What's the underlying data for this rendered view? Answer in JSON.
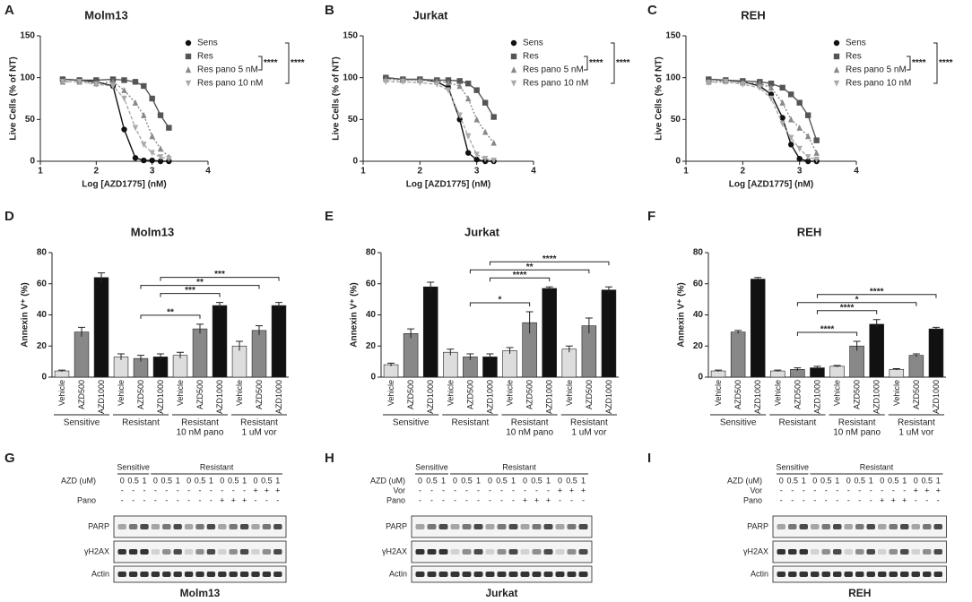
{
  "panel_labels": [
    "A",
    "B",
    "C",
    "D",
    "E",
    "F",
    "G",
    "H",
    "I"
  ],
  "chart_data": [
    {
      "type": "line",
      "title": "Molm13",
      "x_label": "Log [AZD1775] (nM)",
      "y_label": "Live Cells (% of NT)",
      "x": [
        1.4,
        1.7,
        2.0,
        2.3,
        2.5,
        2.7,
        2.85,
        3.0,
        3.15,
        3.3
      ],
      "xlim": [
        1,
        4
      ],
      "xticks": [
        1,
        2,
        3,
        4
      ],
      "ylim": [
        0,
        150
      ],
      "yticks": [
        0,
        50,
        100,
        150
      ],
      "series": [
        {
          "name": "Sens",
          "color": "#111111",
          "marker": "circle",
          "dash": false,
          "values": [
            98,
            97,
            95,
            90,
            38,
            4,
            1,
            1,
            0,
            0
          ]
        },
        {
          "name": "Res",
          "color": "#555555",
          "marker": "square",
          "dash": false,
          "values": [
            98,
            97,
            97,
            98,
            97,
            95,
            90,
            75,
            55,
            40
          ]
        },
        {
          "name": "Res pano 5 nM",
          "color": "#888888",
          "marker": "triangle-up",
          "dash": true,
          "values": [
            95,
            95,
            93,
            95,
            85,
            70,
            55,
            30,
            15,
            5
          ]
        },
        {
          "name": "Res pano 10 nM",
          "color": "#aaaaaa",
          "marker": "triangle-down",
          "dash": true,
          "values": [
            95,
            95,
            92,
            90,
            75,
            40,
            20,
            10,
            5,
            3
          ]
        }
      ],
      "brackets": [
        {
          "label": "****",
          "between": [
            1,
            2
          ]
        },
        {
          "label": "****",
          "between": [
            0,
            3
          ]
        }
      ]
    },
    {
      "type": "line",
      "title": "Jurkat",
      "x_label": "Log [AZD1775] (nM)",
      "y_label": "Live Cells (% of NT)",
      "x": [
        1.4,
        1.7,
        2.0,
        2.3,
        2.5,
        2.7,
        2.85,
        3.0,
        3.15,
        3.3
      ],
      "xlim": [
        1,
        4
      ],
      "xticks": [
        1,
        2,
        3,
        4
      ],
      "ylim": [
        0,
        150
      ],
      "yticks": [
        0,
        50,
        100,
        150
      ],
      "series": [
        {
          "name": "Sens",
          "color": "#111111",
          "marker": "circle",
          "dash": false,
          "values": [
            100,
            98,
            98,
            95,
            88,
            50,
            10,
            2,
            0,
            0
          ]
        },
        {
          "name": "Res",
          "color": "#555555",
          "marker": "square",
          "dash": false,
          "values": [
            100,
            98,
            98,
            97,
            97,
            96,
            93,
            85,
            70,
            53
          ]
        },
        {
          "name": "Res pano 5 nM",
          "color": "#888888",
          "marker": "triangle-up",
          "dash": true,
          "values": [
            98,
            97,
            97,
            96,
            94,
            90,
            75,
            50,
            35,
            22
          ]
        },
        {
          "name": "Res pano 10 nM",
          "color": "#aaaaaa",
          "marker": "triangle-down",
          "dash": true,
          "values": [
            95,
            95,
            94,
            92,
            85,
            55,
            30,
            8,
            3,
            1
          ]
        }
      ],
      "brackets": [
        {
          "label": "****",
          "between": [
            1,
            2
          ]
        },
        {
          "label": "****",
          "between": [
            0,
            3
          ]
        }
      ]
    },
    {
      "type": "line",
      "title": "REH",
      "x_label": "Log [AZD1775] (nM)",
      "y_label": "Live Cells (% of NT)",
      "x": [
        1.4,
        1.7,
        2.0,
        2.3,
        2.5,
        2.7,
        2.85,
        3.0,
        3.15,
        3.3
      ],
      "xlim": [
        1,
        4
      ],
      "xticks": [
        1,
        2,
        3,
        4
      ],
      "ylim": [
        0,
        150
      ],
      "yticks": [
        0,
        50,
        100,
        150
      ],
      "series": [
        {
          "name": "Sens",
          "color": "#111111",
          "marker": "circle",
          "dash": false,
          "values": [
            98,
            97,
            95,
            90,
            80,
            52,
            20,
            3,
            0,
            0
          ]
        },
        {
          "name": "Res",
          "color": "#555555",
          "marker": "square",
          "dash": false,
          "values": [
            98,
            97,
            96,
            95,
            93,
            88,
            80,
            70,
            55,
            25
          ]
        },
        {
          "name": "Res pano 5 nM",
          "color": "#888888",
          "marker": "triangle-up",
          "dash": true,
          "values": [
            95,
            96,
            94,
            93,
            88,
            70,
            50,
            40,
            30,
            10
          ]
        },
        {
          "name": "Res pano 10 nM",
          "color": "#aaaaaa",
          "marker": "triangle-down",
          "dash": true,
          "values": [
            94,
            95,
            92,
            88,
            75,
            45,
            28,
            15,
            5,
            2
          ]
        }
      ],
      "brackets": [
        {
          "label": "****",
          "between": [
            1,
            2
          ]
        },
        {
          "label": "****",
          "between": [
            0,
            3
          ]
        }
      ]
    },
    {
      "type": "bar",
      "title": "Molm13",
      "y_label": "Annexin V⁺ (%)",
      "categories": [
        "Vehicle",
        "AZD500",
        "AZD1000",
        "Vehicle",
        "AZD500",
        "AZD1000",
        "Vehicle",
        "AZD500",
        "AZD1000",
        "Vehicle",
        "AZD500",
        "AZD1000"
      ],
      "values": [
        4,
        29,
        64,
        13,
        12,
        13,
        14,
        31,
        46,
        20,
        30,
        46
      ],
      "errors": [
        0.5,
        3,
        3,
        2,
        2,
        2,
        2,
        3,
        2,
        3,
        3,
        2
      ],
      "bar_colors": [
        "#dddddd",
        "#888888",
        "#111111"
      ],
      "groups": [
        [
          "Sensitive"
        ],
        [
          "Resistant"
        ],
        [
          "Resistant",
          "10 nM pano"
        ],
        [
          "Resistant",
          "1 uM vor"
        ]
      ],
      "ylim": [
        0,
        80
      ],
      "yticks": [
        0,
        20,
        40,
        60,
        80
      ],
      "brackets": [
        {
          "label": "**",
          "between": [
            4,
            7
          ]
        },
        {
          "label": "***",
          "between": [
            5,
            8
          ]
        },
        {
          "label": "**",
          "between": [
            4,
            10
          ]
        },
        {
          "label": "***",
          "between": [
            5,
            11
          ]
        }
      ]
    },
    {
      "type": "bar",
      "title": "Jurkat",
      "y_label": "Annexin V⁺ (%)",
      "categories": [
        "Vehicle",
        "AZD500",
        "AZD1000",
        "Vehicle",
        "AZD500",
        "AZD1000",
        "Vehicle",
        "AZD500",
        "AZD1000",
        "Vehicle",
        "AZD500",
        "AZD1000"
      ],
      "values": [
        8,
        28,
        58,
        16,
        13,
        13,
        17,
        35,
        57,
        18,
        33,
        56
      ],
      "errors": [
        1,
        3,
        3,
        2,
        2,
        2,
        2,
        7,
        1,
        2,
        5,
        2
      ],
      "bar_colors": [
        "#dddddd",
        "#888888",
        "#111111"
      ],
      "groups": [
        [
          "Sensitive"
        ],
        [
          "Resistant"
        ],
        [
          "Resistant",
          "10 nM pano"
        ],
        [
          "Resistant",
          "1 uM vor"
        ]
      ],
      "ylim": [
        0,
        80
      ],
      "yticks": [
        0,
        20,
        40,
        60,
        80
      ],
      "brackets": [
        {
          "label": "*",
          "between": [
            4,
            7
          ]
        },
        {
          "label": "****",
          "between": [
            5,
            8
          ]
        },
        {
          "label": "**",
          "between": [
            4,
            10
          ]
        },
        {
          "label": "****",
          "between": [
            5,
            11
          ]
        }
      ]
    },
    {
      "type": "bar",
      "title": "REH",
      "y_label": "Annexin V⁺ (%)",
      "categories": [
        "Vehicle",
        "AZD500",
        "AZD1000",
        "Vehicle",
        "AZD500",
        "AZD1000",
        "Vehicle",
        "AZD500",
        "AZD1000",
        "Vehicle",
        "AZD500",
        "AZD1000"
      ],
      "values": [
        4,
        29,
        63,
        4,
        5,
        6,
        7,
        20,
        34,
        5,
        14,
        31
      ],
      "errors": [
        0.5,
        1,
        1,
        0.5,
        1,
        1,
        0.5,
        3,
        3,
        0.5,
        1,
        1
      ],
      "bar_colors": [
        "#dddddd",
        "#888888",
        "#111111"
      ],
      "groups": [
        [
          "Sensitive"
        ],
        [
          "Resistant"
        ],
        [
          "Resistant",
          "10 nM pano"
        ],
        [
          "Resistant",
          "1 uM vor"
        ]
      ],
      "ylim": [
        0,
        80
      ],
      "yticks": [
        0,
        20,
        40,
        60,
        80
      ],
      "brackets": [
        {
          "label": "****",
          "between": [
            4,
            7
          ]
        },
        {
          "label": "****",
          "between": [
            5,
            8
          ]
        },
        {
          "label": "*",
          "between": [
            4,
            10
          ]
        },
        {
          "label": "****",
          "between": [
            5,
            11
          ]
        }
      ]
    }
  ],
  "blots": [
    {
      "title": "Molm13",
      "groups": [
        {
          "name": "Sensitive",
          "lanes": 3
        },
        {
          "name": "Resistant",
          "lanes": 12
        }
      ],
      "rows": [
        {
          "label": "AZD (uM)",
          "values": [
            "0",
            "0.5",
            "1",
            "0",
            "0.5",
            "1",
            "0",
            "0.5",
            "1",
            "0",
            "0.5",
            "1",
            "0",
            "0.5",
            "1"
          ]
        },
        {
          "label": null,
          "values": [
            "-",
            "-",
            "-",
            "-",
            "-",
            "-",
            "-",
            "-",
            "-",
            "-",
            "-",
            "-",
            "+",
            "+",
            "+"
          ]
        },
        {
          "label": "Pano",
          "values": [
            "-",
            "-",
            "-",
            "-",
            "-",
            "-",
            "-",
            "-",
            "-",
            "+",
            "+",
            "+",
            "-",
            "-",
            "-"
          ]
        }
      ],
      "bands": [
        "PARP",
        "γH2AX",
        "Actin"
      ]
    },
    {
      "title": "Jurkat",
      "groups": [
        {
          "name": "Sensitive",
          "lanes": 3
        },
        {
          "name": "Resistant",
          "lanes": 12
        }
      ],
      "rows": [
        {
          "label": "AZD (uM)",
          "values": [
            "0",
            "0.5",
            "1",
            "0",
            "0.5",
            "1",
            "0",
            "0.5",
            "1",
            "0",
            "0.5",
            "1",
            "0",
            "0.5",
            "1"
          ]
        },
        {
          "label": "Vor",
          "values": [
            "-",
            "-",
            "-",
            "-",
            "-",
            "-",
            "-",
            "-",
            "-",
            "-",
            "-",
            "-",
            "+",
            "+",
            "+"
          ]
        },
        {
          "label": "Pano",
          "values": [
            "-",
            "-",
            "-",
            "-",
            "-",
            "-",
            "-",
            "-",
            "-",
            "+",
            "+",
            "+",
            "-",
            "-",
            "-"
          ]
        }
      ],
      "bands": [
        "PARP",
        "γH2AX",
        "Actin"
      ]
    },
    {
      "title": "REH",
      "groups": [
        {
          "name": "Sensitive",
          "lanes": 3
        },
        {
          "name": "Resistant",
          "lanes": 12
        }
      ],
      "rows": [
        {
          "label": "AZD (uM)",
          "values": [
            "0",
            "0.5",
            "1",
            "0",
            "0.5",
            "1",
            "0",
            "0.5",
            "1",
            "0",
            "0.5",
            "1",
            "0",
            "0.5",
            "1"
          ]
        },
        {
          "label": "Vor",
          "values": [
            "-",
            "-",
            "-",
            "-",
            "-",
            "-",
            "-",
            "-",
            "-",
            "-",
            "-",
            "-",
            "+",
            "+",
            "+"
          ]
        },
        {
          "label": "Pano",
          "values": [
            "-",
            "-",
            "-",
            "-",
            "-",
            "-",
            "-",
            "-",
            "-",
            "+",
            "+",
            "+",
            "-",
            "-",
            "-"
          ]
        }
      ],
      "bands": [
        "PARP",
        "γH2AX",
        "Actin"
      ]
    }
  ]
}
